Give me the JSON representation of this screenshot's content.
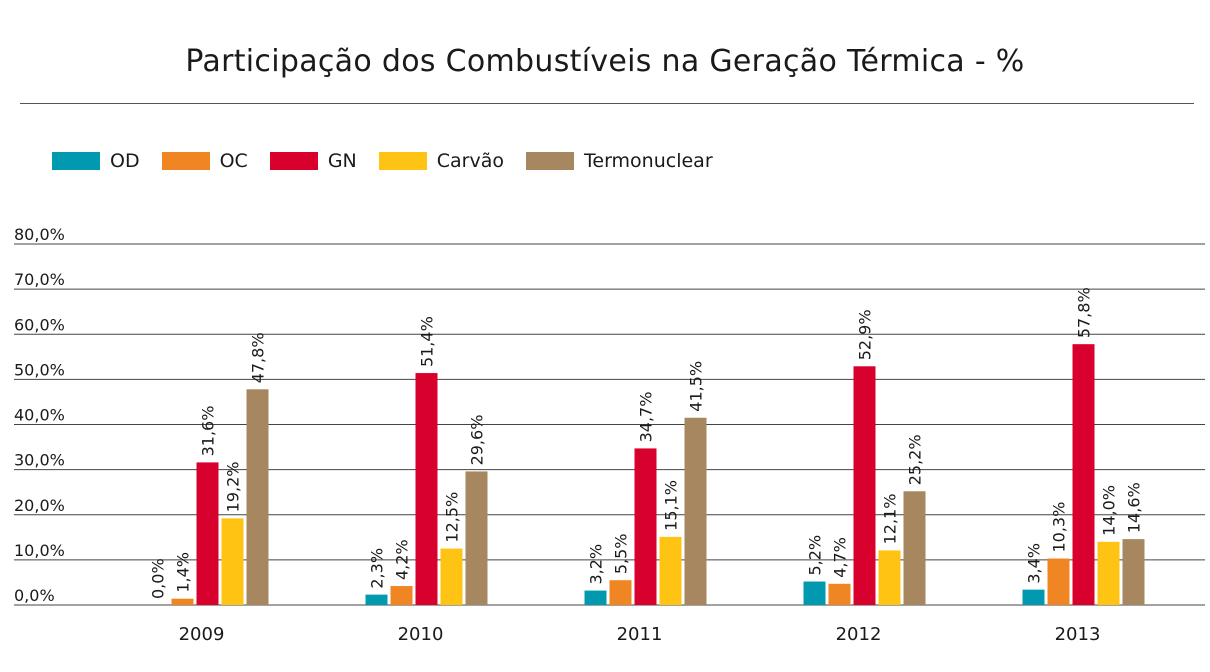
{
  "chart_data": {
    "type": "bar",
    "title": "Participação dos Combustíveis na Geração Térmica - %",
    "categories": [
      "2009",
      "2010",
      "2011",
      "2012",
      "2013"
    ],
    "series": [
      {
        "name": "OD",
        "color": "#0099B0",
        "values": [
          0.0,
          2.3,
          3.2,
          5.2,
          3.4
        ],
        "labels": [
          "0,0%",
          "2,3%",
          "3,2%",
          "5,2%",
          "3,4%"
        ]
      },
      {
        "name": "OC",
        "color": "#F08524",
        "values": [
          1.4,
          4.2,
          5.5,
          4.7,
          10.3
        ],
        "labels": [
          "1,4%",
          "4,2%",
          "5,5%",
          "4,7%",
          "10,3%"
        ]
      },
      {
        "name": "GN",
        "color": "#D8002D",
        "values": [
          31.6,
          51.4,
          34.7,
          52.9,
          57.8
        ],
        "labels": [
          "31,6%",
          "51,4%",
          "34,7%",
          "52,9%",
          "57,8%"
        ]
      },
      {
        "name": "Carvão",
        "color": "#FFC313",
        "values": [
          19.2,
          12.5,
          15.1,
          12.1,
          14.0
        ],
        "labels": [
          "19,2%",
          "12,5%",
          "15,1%",
          "12,1%",
          "14,0%"
        ]
      },
      {
        "name": "Termonuclear",
        "color": "#A6875F",
        "values": [
          47.8,
          29.6,
          41.5,
          25.2,
          14.6
        ],
        "labels": [
          "47,8%",
          "29,6%",
          "41,5%",
          "25,2%",
          "14,6%"
        ]
      }
    ],
    "yticks": [
      0,
      10,
      20,
      30,
      40,
      50,
      60,
      70,
      80
    ],
    "ytick_labels": [
      "0,0%",
      "10,0%",
      "20,0%",
      "30,0%",
      "40,0%",
      "50,0%",
      "60,0%",
      "70,0%",
      "80,0%"
    ],
    "ylim": [
      0,
      80
    ],
    "grid": true,
    "legend_position": "top-left"
  }
}
